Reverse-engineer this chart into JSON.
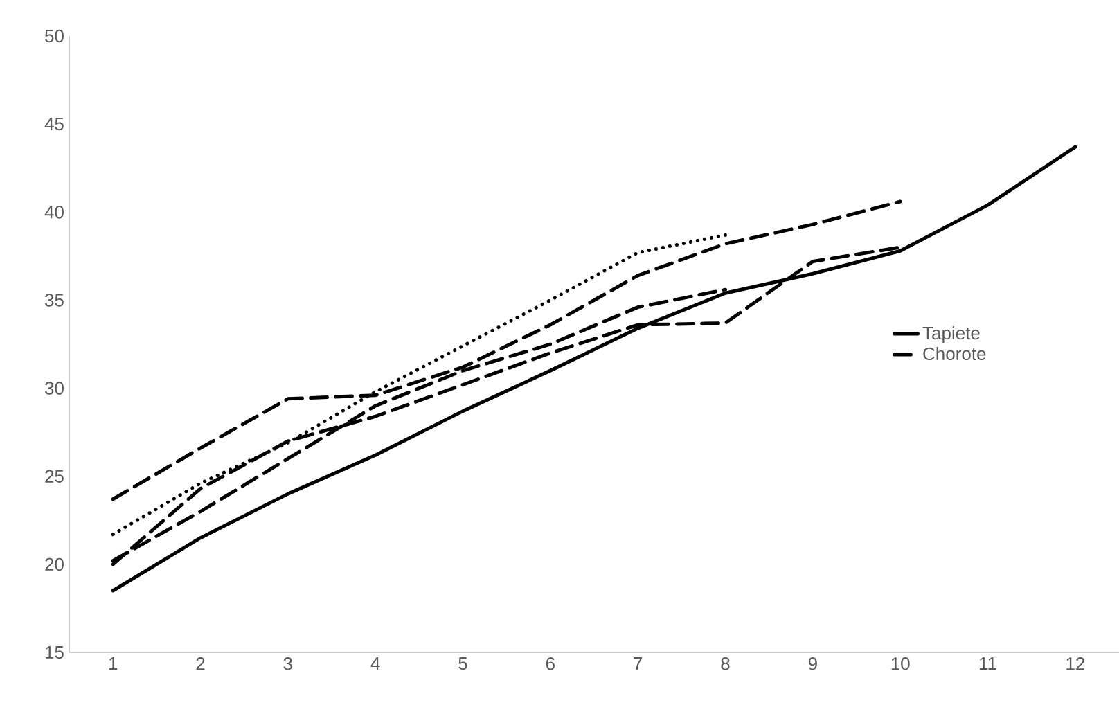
{
  "chart_data": {
    "type": "line",
    "categories": [
      "1",
      "2",
      "3",
      "4",
      "5",
      "6",
      "7",
      "8",
      "9",
      "10",
      "11",
      "12"
    ],
    "ylim": [
      15,
      50
    ],
    "yticks": [
      15,
      20,
      25,
      30,
      35,
      40,
      45,
      50
    ],
    "grid": false,
    "legend": "right",
    "series": [
      {
        "name": "Tapiete",
        "color": "#000000",
        "line_style": "solid",
        "values": [
          18.5,
          21.5,
          24.0,
          26.2,
          28.7,
          31.0,
          33.4,
          35.4,
          36.5,
          37.8,
          40.4,
          43.7
        ]
      },
      {
        "name": "Chorote",
        "color": "#000000",
        "line_style": "dashed",
        "values": [
          20.2,
          23.0,
          26.0,
          29.0,
          31.0,
          32.5,
          34.6,
          35.6,
          null,
          null,
          null,
          null
        ]
      },
      {
        "color": "#000000",
        "line_style": "dashed",
        "values": [
          23.7,
          26.6,
          29.4,
          29.6,
          31.2,
          33.6,
          36.4,
          38.2,
          39.3,
          40.6,
          null,
          null
        ]
      },
      {
        "color": "#000000",
        "line_style": "dotted",
        "values": [
          21.7,
          24.6,
          26.9,
          29.8,
          32.4,
          35.0,
          37.7,
          38.7,
          null,
          null,
          null,
          null
        ]
      },
      {
        "color": "#000000",
        "line_style": "dashed",
        "values": [
          20.0,
          24.3,
          27.0,
          28.4,
          30.2,
          32.0,
          33.6,
          33.7,
          37.2,
          38.0,
          null,
          null
        ]
      }
    ]
  }
}
